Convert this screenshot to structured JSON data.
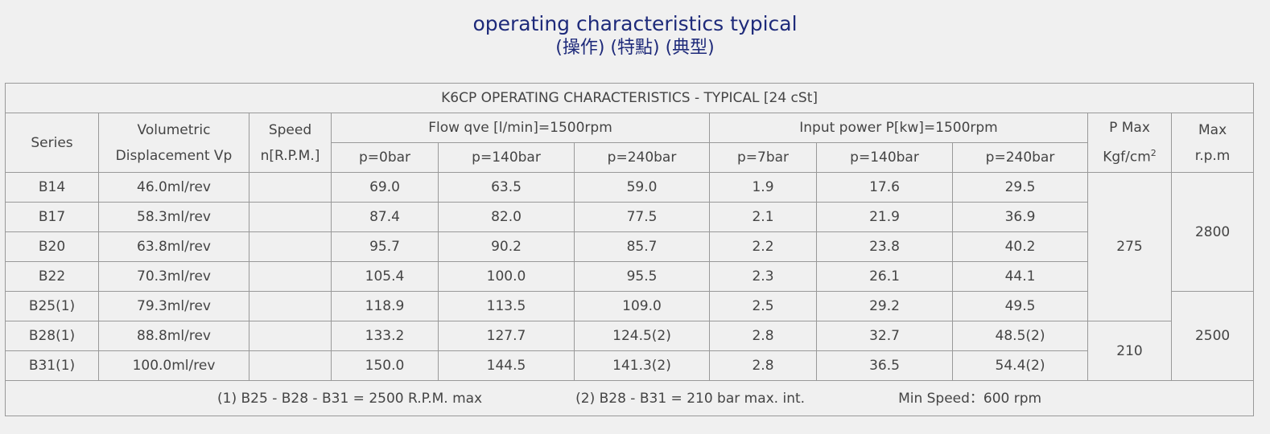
{
  "header": {
    "title": "operating characteristics typical",
    "subtitle": "(操作) (特點) (典型)"
  },
  "table": {
    "caption": "K6CP OPERATING CHARACTERISTICS - TYPICAL [24 cSt]",
    "columns": {
      "series": "Series",
      "displacement": [
        "Volumetric",
        "Displacement Vp"
      ],
      "speed": [
        "Speed",
        "n[R.P.M.]"
      ],
      "flow": "Flow qve [l/min]=1500rpm",
      "flow_sub": [
        "p=0bar",
        "p=140bar",
        "p=240bar"
      ],
      "power": "Input power P[kw]=1500rpm",
      "power_sub": [
        "p=7bar",
        "p=140bar",
        "p=240bar"
      ],
      "pmax": {
        "line1": "P Max",
        "unit": "Kgf/cm",
        "sup": "2"
      },
      "maxrpm": [
        "Max",
        "r.p.m"
      ]
    },
    "rows": [
      [
        "B14",
        "46.0ml/rev",
        "69.0",
        "63.5",
        "59.0",
        "1.9",
        "17.6",
        "29.5"
      ],
      [
        "B17",
        "58.3ml/rev",
        "87.4",
        "82.0",
        "77.5",
        "2.1",
        "21.9",
        "36.9"
      ],
      [
        "B20",
        "63.8ml/rev",
        "95.7",
        "90.2",
        "85.7",
        "2.2",
        "23.8",
        "40.2"
      ],
      [
        "B22",
        "70.3ml/rev",
        "105.4",
        "100.0",
        "95.5",
        "2.3",
        "26.1",
        "44.1"
      ],
      [
        "B25(1)",
        "79.3ml/rev",
        "118.9",
        "113.5",
        "109.0",
        "2.5",
        "29.2",
        "49.5"
      ],
      [
        "B28(1)",
        "88.8ml/rev",
        "133.2",
        "127.7",
        "124.5(2)",
        "2.8",
        "32.7",
        "48.5(2)"
      ],
      [
        "B31(1)",
        "100.0ml/rev",
        "150.0",
        "144.5",
        "141.3(2)",
        "2.8",
        "36.5",
        "54.4(2)"
      ]
    ],
    "pmax_values": [
      "275",
      "210"
    ],
    "maxrpm_values": [
      "2800",
      "2500"
    ],
    "footer": [
      "(1) B25 - B28 - B31 = 2500 R.P.M. max",
      "(2) B28 - B31 = 210 bar max. int.",
      "Min Speed：600 rpm"
    ]
  }
}
